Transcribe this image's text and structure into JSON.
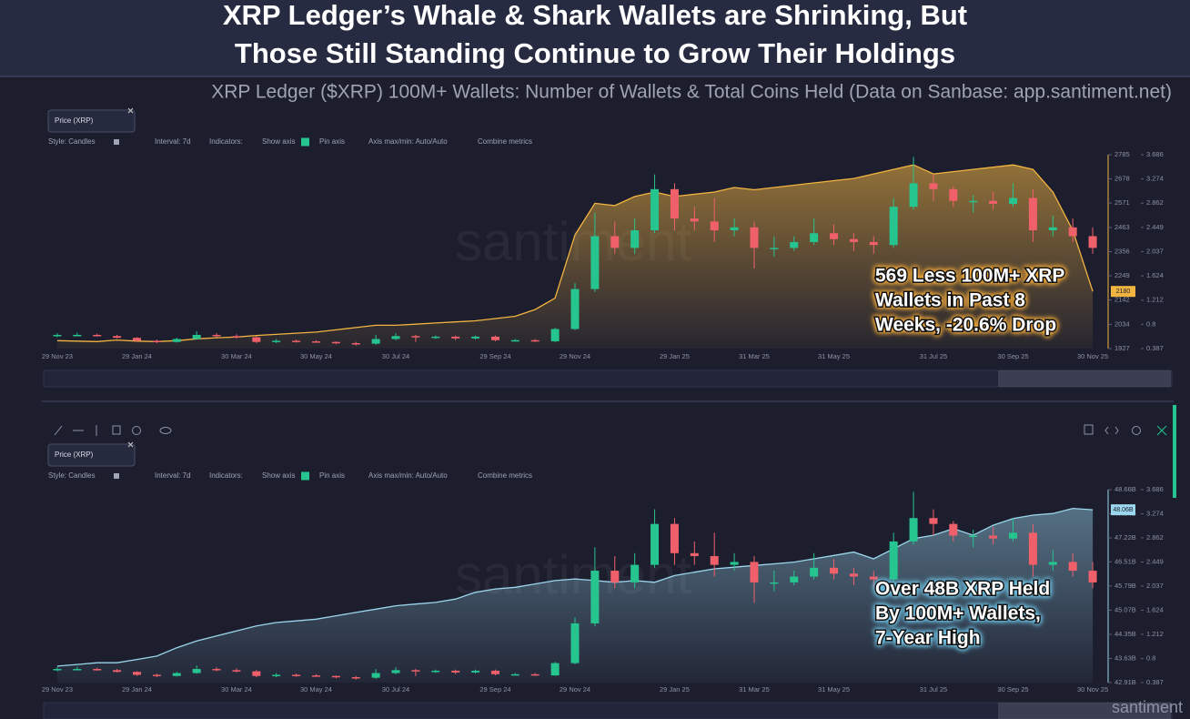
{
  "header": {
    "title": [
      "XRP Ledger’s Whale & Shark Wallets are Shrinking, But",
      "Those Still Standing Continue to Grow Their Holdings"
    ],
    "subtitle": "XRP Ledger ($XRP) 100M+ Wallets: Number of Wallets & Total Coins Held (Data on Sanbase: app.santiment.net)"
  },
  "toolbar": {
    "style": "Style: Candles",
    "interval": "Interval: 7d",
    "indicators": "Indicators:",
    "show_axis": "Show axis",
    "pin_axis": "Pin axis",
    "axis_minmax": "Axis max/min: Auto/Auto",
    "combine": "Combine metrics"
  },
  "watermark": "santiment",
  "chart_data": [
    {
      "type": "candlestick",
      "categories": [
        "29 Nov 23",
        null,
        null,
        null,
        "29 Jan 24",
        null,
        null,
        null,
        null,
        "30 Mar 24",
        null,
        null,
        null,
        "30 May 24",
        null,
        null,
        null,
        "30 Jul 24",
        null,
        null,
        null,
        null,
        "29 Sep 24",
        null,
        null,
        null,
        "29 Nov 24",
        null,
        null,
        null,
        null,
        "29 Jan 25",
        null,
        null,
        null,
        "31 Mar 25",
        null,
        null,
        null,
        "31 May 25",
        null,
        null,
        null,
        null,
        "31 Jul 25",
        null,
        null,
        null,
        "30 Sep 25",
        null,
        null,
        null,
        "30 Nov 25"
      ],
      "series": [
        {
          "type": "area",
          "axis": "y",
          "color": "#f2b441",
          "values": [
            1962,
            1960,
            1958,
            1965,
            1960,
            1958,
            1962,
            1970,
            1975,
            1978,
            1985,
            1990,
            1995,
            2000,
            2010,
            2020,
            2030,
            2030,
            2035,
            2040,
            2045,
            2050,
            2060,
            2070,
            2100,
            2150,
            2430,
            2570,
            2560,
            2600,
            2620,
            2600,
            2610,
            2620,
            2640,
            2630,
            2640,
            2650,
            2660,
            2670,
            2680,
            2700,
            2720,
            2740,
            2700,
            2710,
            2720,
            2730,
            2740,
            2720,
            2620,
            2450,
            2180
          ]
        },
        {
          "type": "candlestick",
          "axis": "y2",
          "name": "Price (XRP)",
          "up_color": "#26c48f",
          "down_color": "#f0606a",
          "open": [
            0.6,
            0.62,
            0.62,
            0.6,
            0.57,
            0.52,
            0.5,
            0.55,
            0.62,
            0.6,
            0.58,
            0.5,
            0.52,
            0.51,
            0.5,
            0.48,
            0.47,
            0.55,
            0.6,
            0.58,
            0.59,
            0.56,
            0.59,
            0.53,
            0.53,
            0.51,
            0.72,
            1.4,
            2.3,
            2.1,
            2.4,
            3.1,
            2.6,
            2.55,
            2.4,
            2.45,
            2.1,
            2.1,
            2.2,
            2.35,
            2.25,
            2.2,
            2.15,
            2.8,
            3.2,
            3.1,
            2.9,
            2.9,
            2.85,
            2.95,
            2.4,
            2.45,
            2.3
          ],
          "high": [
            0.65,
            0.66,
            0.64,
            0.62,
            0.58,
            0.54,
            0.57,
            0.68,
            0.65,
            0.63,
            0.6,
            0.55,
            0.54,
            0.53,
            0.51,
            0.5,
            0.62,
            0.65,
            0.62,
            0.61,
            0.61,
            0.61,
            0.61,
            0.55,
            0.55,
            0.74,
            1.5,
            2.7,
            2.55,
            2.6,
            3.35,
            3.2,
            2.8,
            2.95,
            2.6,
            2.55,
            2.3,
            2.3,
            2.6,
            2.5,
            2.35,
            2.3,
            2.95,
            3.65,
            3.35,
            3.15,
            3.0,
            3.05,
            3.2,
            3.1,
            2.65,
            2.6,
            2.45
          ],
          "low": [
            0.58,
            0.6,
            0.59,
            0.56,
            0.5,
            0.48,
            0.49,
            0.54,
            0.58,
            0.56,
            0.48,
            0.48,
            0.49,
            0.49,
            0.46,
            0.44,
            0.45,
            0.53,
            0.5,
            0.55,
            0.53,
            0.54,
            0.51,
            0.51,
            0.5,
            0.5,
            0.7,
            1.35,
            2.0,
            2.0,
            2.35,
            2.4,
            2.4,
            2.2,
            2.3,
            1.75,
            1.95,
            2.05,
            2.15,
            2.15,
            2.05,
            2.0,
            2.1,
            2.75,
            2.9,
            2.8,
            2.7,
            2.75,
            2.8,
            2.2,
            2.3,
            2.2,
            2.0
          ],
          "close": [
            0.62,
            0.62,
            0.6,
            0.57,
            0.52,
            0.5,
            0.55,
            0.62,
            0.6,
            0.58,
            0.5,
            0.52,
            0.51,
            0.5,
            0.48,
            0.47,
            0.55,
            0.6,
            0.58,
            0.59,
            0.56,
            0.59,
            0.53,
            0.53,
            0.51,
            0.72,
            1.4,
            2.3,
            2.1,
            2.4,
            3.1,
            2.6,
            2.55,
            2.4,
            2.45,
            2.1,
            2.1,
            2.2,
            2.35,
            2.25,
            2.2,
            2.15,
            2.8,
            3.2,
            3.1,
            2.9,
            2.9,
            2.85,
            2.95,
            2.4,
            2.45,
            2.3,
            2.1
          ]
        }
      ],
      "ylim": [
        1927,
        2785
      ],
      "yticks": [
        1927,
        2034,
        2142,
        2249,
        2356,
        2463,
        2571,
        2678,
        2785
      ],
      "y2lim": [
        0.387,
        3.686
      ],
      "y2ticks": [
        0.387,
        0.8,
        1.212,
        1.624,
        2.037,
        2.449,
        2.862,
        3.274,
        3.686
      ],
      "last_label": "2180",
      "annotation": [
        "569 Less 100M+ XRP",
        "Wallets in Past 8",
        "Weeks, -20.6% Drop"
      ]
    },
    {
      "type": "candlestick",
      "categories": [
        "29 Nov 23",
        null,
        null,
        null,
        "29 Jan 24",
        null,
        null,
        null,
        null,
        "30 Mar 24",
        null,
        null,
        null,
        "30 May 24",
        null,
        null,
        null,
        "30 Jul 24",
        null,
        null,
        null,
        null,
        "29 Sep 24",
        null,
        null,
        null,
        "29 Nov 24",
        null,
        null,
        null,
        null,
        "29 Jan 25",
        null,
        null,
        null,
        "31 Mar 25",
        null,
        null,
        null,
        "31 May 25",
        null,
        null,
        null,
        null,
        "31 Jul 25",
        null,
        null,
        null,
        "30 Sep 25",
        null,
        null,
        null,
        "30 Nov 25"
      ],
      "series": [
        {
          "type": "area",
          "axis": "y",
          "color": "#9bd6ec",
          "values": [
            43.4,
            43.45,
            43.5,
            43.5,
            43.6,
            43.7,
            43.95,
            44.15,
            44.3,
            44.45,
            44.6,
            44.7,
            44.75,
            44.8,
            44.9,
            45.0,
            45.1,
            45.2,
            45.25,
            45.3,
            45.4,
            45.6,
            45.7,
            45.75,
            45.85,
            45.95,
            46.0,
            45.95,
            45.9,
            45.95,
            45.9,
            46.1,
            46.2,
            46.3,
            46.35,
            46.4,
            46.45,
            46.5,
            46.6,
            46.7,
            46.8,
            46.6,
            46.9,
            47.2,
            47.3,
            47.5,
            47.3,
            47.6,
            47.8,
            47.9,
            47.95,
            48.1,
            48.06
          ]
        },
        {
          "type": "candlestick",
          "axis": "y2",
          "name": "Price (XRP)",
          "up_color": "#26c48f",
          "down_color": "#f0606a",
          "open": [
            0.6,
            0.62,
            0.62,
            0.6,
            0.57,
            0.52,
            0.5,
            0.55,
            0.62,
            0.6,
            0.58,
            0.5,
            0.52,
            0.51,
            0.5,
            0.48,
            0.47,
            0.55,
            0.6,
            0.58,
            0.59,
            0.56,
            0.59,
            0.53,
            0.53,
            0.51,
            0.72,
            1.4,
            2.3,
            2.1,
            2.4,
            3.1,
            2.6,
            2.55,
            2.4,
            2.45,
            2.1,
            2.1,
            2.2,
            2.35,
            2.25,
            2.2,
            2.15,
            2.8,
            3.2,
            3.1,
            2.9,
            2.9,
            2.85,
            2.95,
            2.4,
            2.45,
            2.3
          ],
          "high": [
            0.65,
            0.66,
            0.64,
            0.62,
            0.58,
            0.54,
            0.57,
            0.68,
            0.65,
            0.63,
            0.6,
            0.55,
            0.54,
            0.53,
            0.51,
            0.5,
            0.62,
            0.65,
            0.62,
            0.61,
            0.61,
            0.61,
            0.61,
            0.55,
            0.55,
            0.74,
            1.5,
            2.7,
            2.55,
            2.6,
            3.35,
            3.2,
            2.8,
            2.95,
            2.6,
            2.55,
            2.3,
            2.3,
            2.6,
            2.5,
            2.35,
            2.3,
            2.95,
            3.65,
            3.35,
            3.15,
            3.0,
            3.05,
            3.2,
            3.1,
            2.65,
            2.6,
            2.45
          ],
          "low": [
            0.58,
            0.6,
            0.59,
            0.56,
            0.5,
            0.48,
            0.49,
            0.54,
            0.58,
            0.56,
            0.48,
            0.48,
            0.49,
            0.49,
            0.46,
            0.44,
            0.45,
            0.53,
            0.5,
            0.55,
            0.53,
            0.54,
            0.51,
            0.51,
            0.5,
            0.5,
            0.7,
            1.35,
            2.0,
            2.0,
            2.35,
            2.4,
            2.4,
            2.2,
            2.3,
            1.75,
            1.95,
            2.05,
            2.15,
            2.15,
            2.05,
            2.0,
            2.1,
            2.75,
            2.9,
            2.8,
            2.7,
            2.75,
            2.8,
            2.2,
            2.3,
            2.2,
            2.0
          ],
          "close": [
            0.62,
            0.62,
            0.6,
            0.57,
            0.52,
            0.5,
            0.55,
            0.62,
            0.6,
            0.58,
            0.5,
            0.52,
            0.51,
            0.5,
            0.48,
            0.47,
            0.55,
            0.6,
            0.58,
            0.59,
            0.56,
            0.59,
            0.53,
            0.53,
            0.51,
            0.72,
            1.4,
            2.3,
            2.1,
            2.4,
            3.1,
            2.6,
            2.55,
            2.4,
            2.45,
            2.1,
            2.1,
            2.2,
            2.35,
            2.25,
            2.2,
            2.15,
            2.8,
            3.2,
            3.1,
            2.9,
            2.9,
            2.85,
            2.95,
            2.4,
            2.45,
            2.3,
            2.1
          ]
        }
      ],
      "ylim": [
        42.91,
        48.66
      ],
      "yticks": [
        {
          "value": 42.91,
          "label": "42.91B"
        },
        {
          "value": 43.63,
          "label": "43.63B"
        },
        {
          "value": 44.35,
          "label": "44.35B"
        },
        {
          "value": 45.07,
          "label": "45.07B"
        },
        {
          "value": 45.79,
          "label": "45.79B"
        },
        {
          "value": 46.51,
          "label": "46.51B"
        },
        {
          "value": 47.22,
          "label": "47.22B"
        },
        {
          "value": 47.94,
          "label": "47.94B"
        },
        {
          "value": 48.66,
          "label": "48.66B"
        }
      ],
      "y2lim": [
        0.387,
        3.686
      ],
      "y2ticks": [
        0.387,
        0.8,
        1.212,
        1.624,
        2.037,
        2.449,
        2.862,
        3.274,
        3.686
      ],
      "last_label": "48.06B",
      "annotation": [
        "Over 48B XRP Held",
        "By 100M+ Wallets,",
        "7-Year High"
      ]
    }
  ]
}
